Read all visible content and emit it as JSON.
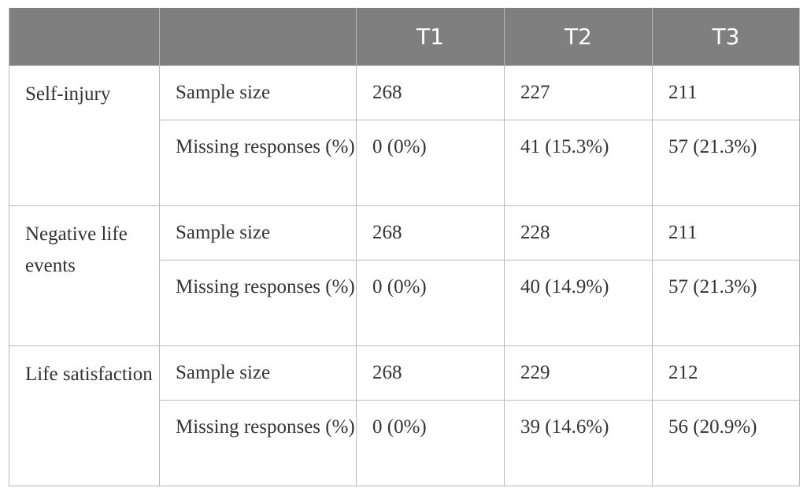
{
  "header": [
    "",
    "",
    "T1",
    "T2",
    "T3"
  ],
  "groups": [
    {
      "label": "Self-injury",
      "rows": [
        {
          "measure": "Sample size",
          "t1": "268",
          "t2": "227",
          "t3": "211"
        },
        {
          "measure": "Missing responses (%)",
          "t1": "0 (0%)",
          "t2": "41 (15.3%)",
          "t3": "57 (21.3%)"
        }
      ]
    },
    {
      "label": "Negative life events",
      "rows": [
        {
          "measure": "Sample size",
          "t1": "268",
          "t2": "228",
          "t3": "211"
        },
        {
          "measure": "Missing responses (%)",
          "t1": "0 (0%)",
          "t2": "40 (14.9%)",
          "t3": "57 (21.3%)"
        }
      ]
    },
    {
      "label": "Life satisfaction",
      "rows": [
        {
          "measure": "Sample size",
          "t1": "268",
          "t2": "229",
          "t3": "212"
        },
        {
          "measure": "Missing responses (%)",
          "t1": "0 (0%)",
          "t2": "39 (14.6%)",
          "t3": "56 (20.9%)"
        }
      ]
    }
  ]
}
